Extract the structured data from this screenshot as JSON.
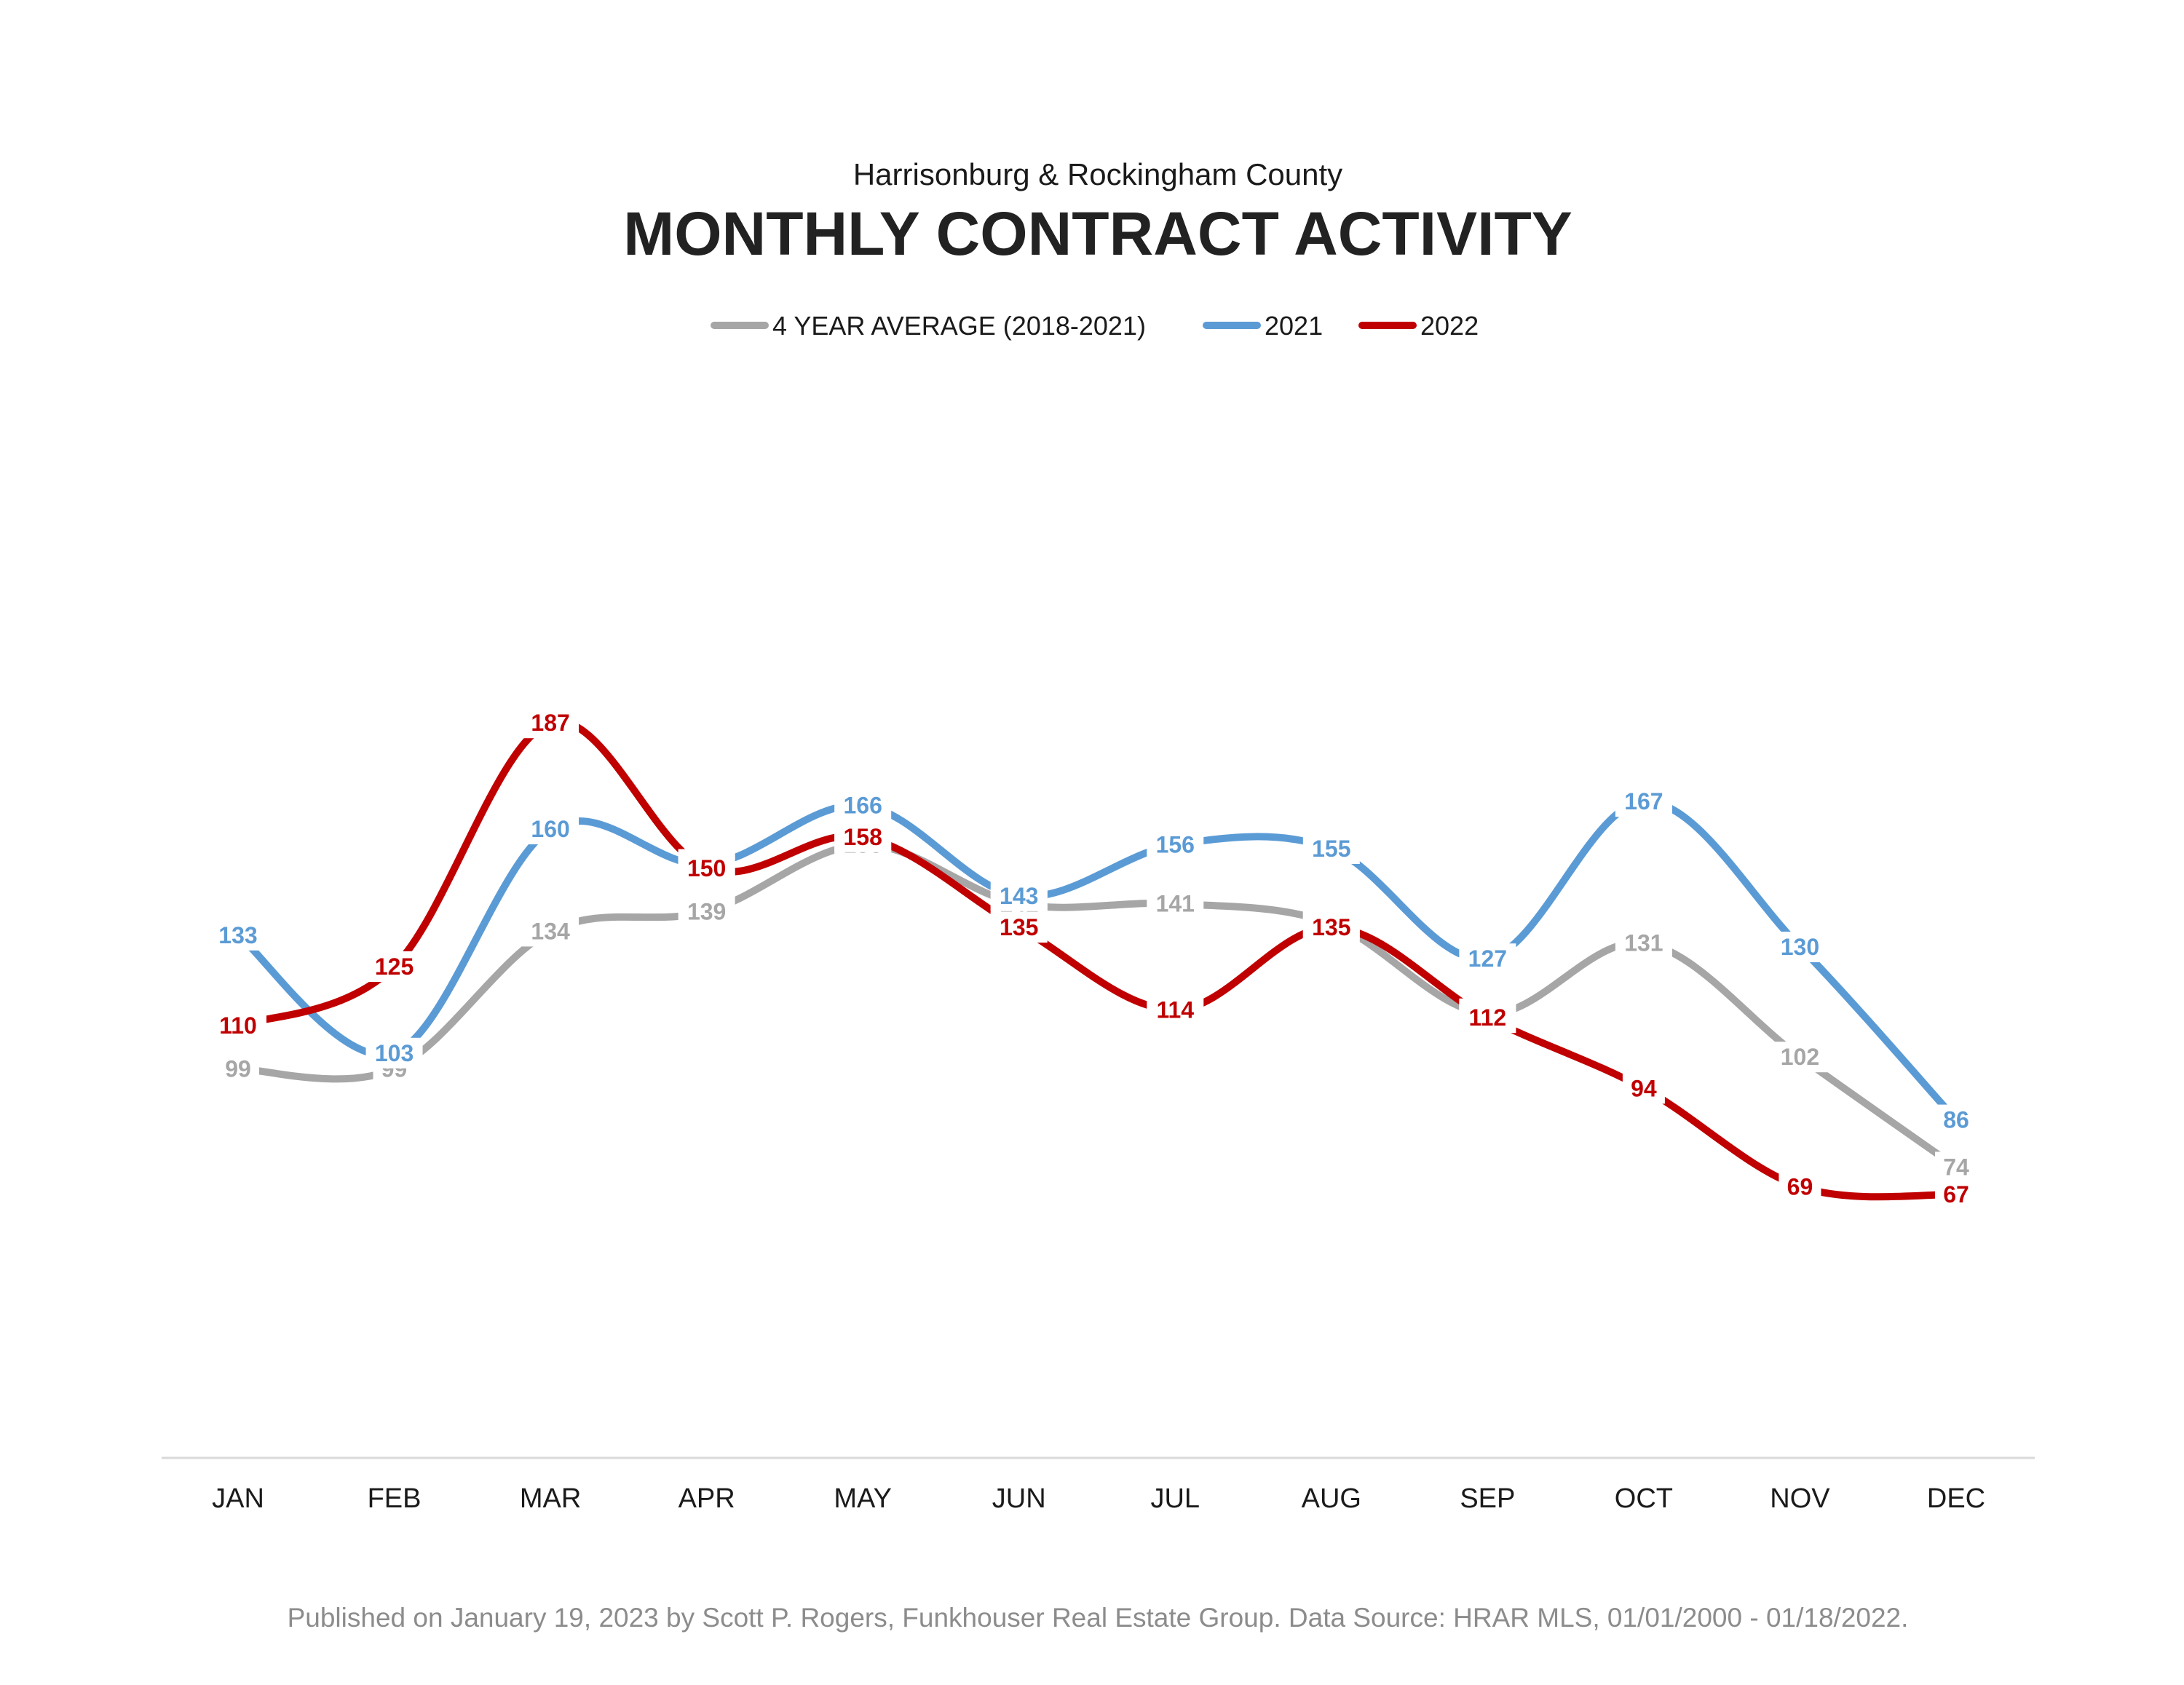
{
  "header": {
    "subtitle": "Harrisonburg & Rockingham County",
    "title": "MONTHLY CONTRACT ACTIVITY"
  },
  "footer": {
    "note": "Published on January 19, 2023 by Scott P. Rogers, Funkhouser Real Estate Group. Data Source: HRAR MLS, 01/01/2000 - 01/18/2022."
  },
  "chart_data": {
    "type": "line",
    "title": "MONTHLY CONTRACT ACTIVITY",
    "subtitle": "Harrisonburg & Rockingham County",
    "xlabel": "",
    "ylabel": "",
    "categories": [
      "JAN",
      "FEB",
      "MAR",
      "APR",
      "MAY",
      "JUN",
      "JUL",
      "AUG",
      "SEP",
      "OCT",
      "NOV",
      "DEC"
    ],
    "ylim": [
      0,
      200
    ],
    "grid": false,
    "smooth": true,
    "legend_position": "top",
    "series": [
      {
        "name": "4 YEAR AVERAGE (2018-2021)",
        "color": "#a6a6a6",
        "values": [
          99,
          99,
          134,
          139,
          156,
          141,
          141,
          136,
          113,
          131,
          102,
          74
        ]
      },
      {
        "name": "2021",
        "color": "#5b9bd5",
        "values": [
          133,
          103,
          160,
          151,
          166,
          143,
          156,
          155,
          127,
          167,
          130,
          86
        ]
      },
      {
        "name": "2022",
        "color": "#c00000",
        "values": [
          110,
          125,
          187,
          150,
          158,
          135,
          114,
          135,
          112,
          94,
          69,
          67
        ]
      }
    ]
  }
}
